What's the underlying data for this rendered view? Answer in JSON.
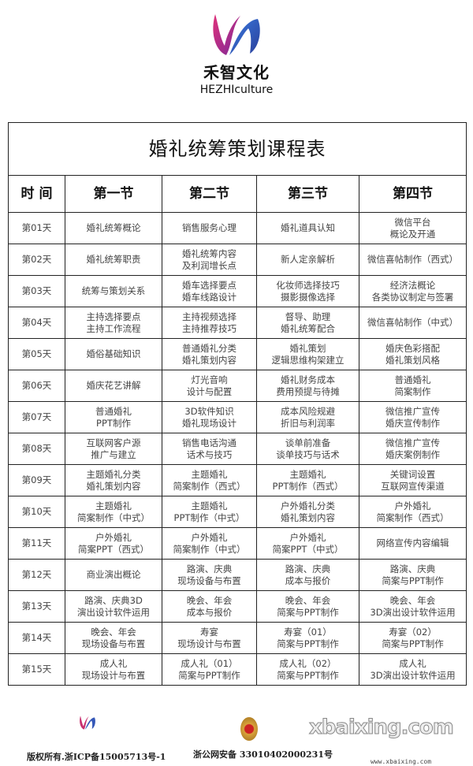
{
  "brand": {
    "name_cn": "禾智文化",
    "name_en": "HEZHIculture"
  },
  "table": {
    "title": "婚礼统筹策划课程表",
    "headers": [
      "时 间",
      "第一节",
      "第二节",
      "第三节",
      "第四节"
    ],
    "rows": [
      [
        "第01天",
        "婚礼统筹概论",
        "销售服务心理",
        "婚礼道具认知",
        "微信平台\n概论及开通"
      ],
      [
        "第02天",
        "婚礼统筹职责",
        "婚礼统筹内容\n及利润增长点",
        "新人定亲解析",
        "微信喜帖制作（西式）"
      ],
      [
        "第03天",
        "统筹与策划关系",
        "婚车选择要点\n婚车线路设计",
        "化妆师选择技巧\n摄影摄像选择",
        "经济法概论\n各类协议制定与签署"
      ],
      [
        "第04天",
        "主持选择要点\n主持工作流程",
        "主持视频选择\n主持推荐技巧",
        "督导、助理\n婚礼统筹配合",
        "微信喜帖制作（中式）"
      ],
      [
        "第05天",
        "婚俗基础知识",
        "普通婚礼分类\n婚礼策划内容",
        "婚礼策划\n逻辑思维构架建立",
        "婚庆色彩搭配\n婚礼策划风格"
      ],
      [
        "第06天",
        "婚庆花艺讲解",
        "灯光音响\n设计与配置",
        "婚礼财务成本\n费用预提与待摊",
        "普通婚礼\n简案制作"
      ],
      [
        "第07天",
        "普通婚礼\nPPT制作",
        "3D软件知识\n婚礼现场设计",
        "成本风险规避\n折旧与利润率",
        "微信推广宣传\n婚庆宣传制作"
      ],
      [
        "第08天",
        "互联网客户源\n推广与建立",
        "销售电话沟通\n话术与技巧",
        "谈单前准备\n谈单技巧与话术",
        "微信推广宣传\n婚庆案例制作"
      ],
      [
        "第09天",
        "主题婚礼分类\n婚礼策划内容",
        "主题婚礼\n简案制作（西式）",
        "主题婚礼\nPPT制作（西式）",
        "关键词设置\n互联网宣传渠道"
      ],
      [
        "第10天",
        "主题婚礼\n简案制作（中式）",
        "主题婚礼\nPPT制作（中式）",
        "户外婚礼分类\n婚礼策划内容",
        "户外婚礼\n简案制作（西式）"
      ],
      [
        "第11天",
        "户外婚礼\n简案PPT（西式）",
        "户外婚礼\n简案制作（中式）",
        "户外婚礼\n简案PPT（中式）",
        "网络宣传内容编辑"
      ],
      [
        "第12天",
        "商业演出概论",
        "路演、庆典\n现场设备与布置",
        "路演、庆典\n成本与报价",
        "路演、庆典\n简案与PPT制作"
      ],
      [
        "第13天",
        "路演、庆典3D\n演出设计软件运用",
        "晚会、年会\n成本与报价",
        "晚会、年会\n简案与PPT制作",
        "晚会、年会\n3D演出设计软件运用"
      ],
      [
        "第14天",
        "晚会、年会\n现场设备与布置",
        "寿宴\n现场设计与布置",
        "寿宴（01）\n简案与PPT制作",
        "寿宴（02）\n简案与PPT制作"
      ],
      [
        "第15天",
        "成人礼\n现场设计与布置",
        "成人礼（01）\n简案与PPT制作",
        "成人礼（02）\n简案与PPT制作",
        "成人礼\n3D演出设计软件运用"
      ]
    ]
  },
  "footer": {
    "copyright": "版权所有.浙ICP备15005713号-1",
    "record": "浙公网安备 33010402000231号",
    "watermark": "xbaixing.com",
    "watermark_url": "www.xbaixing.com"
  }
}
